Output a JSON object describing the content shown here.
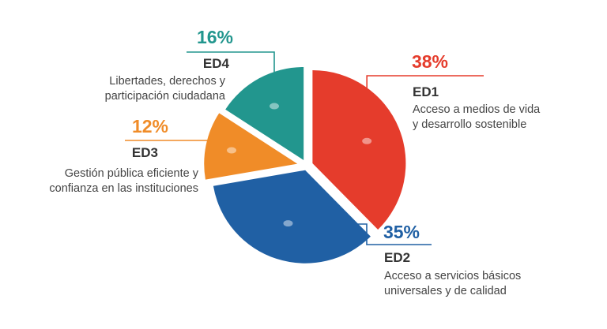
{
  "chart_data": {
    "type": "pie",
    "slices": [
      {
        "code": "ED1",
        "value": 38,
        "label": "38%",
        "desc": [
          "Acceso a medios de vida",
          "y desarrollo sostenible"
        ],
        "color": "#e53c2c"
      },
      {
        "code": "ED2",
        "value": 35,
        "label": "35%",
        "desc": [
          "Acceso a servicios básicos",
          "universales y de calidad"
        ],
        "color": "#2060a4"
      },
      {
        "code": "ED3",
        "value": 12,
        "label": "12%",
        "desc": [
          "Gestión pública eficiente y",
          "confianza en las instituciones"
        ],
        "color": "#f08c28"
      },
      {
        "code": "ED4",
        "value": 16,
        "label": "16%",
        "desc": [
          "Libertades, derechos y",
          "participación ciudadana"
        ],
        "color": "#22968e"
      }
    ]
  }
}
